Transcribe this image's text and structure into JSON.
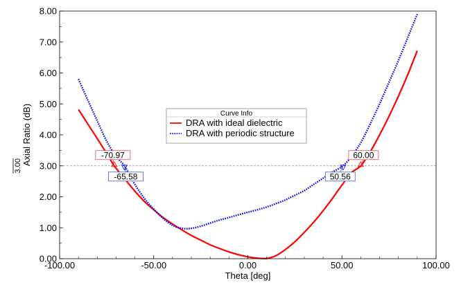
{
  "chart_data": {
    "type": "line",
    "xlabel": "Theta [deg]",
    "ylabel": "Axial Ratio (dB)",
    "xlim": [
      -100,
      100
    ],
    "ylim": [
      0,
      8
    ],
    "xticks": [
      "-100.00",
      "-50.00",
      "0.00",
      "50.00",
      "100.00"
    ],
    "xtick_values": [
      -100,
      -50,
      0,
      50,
      100
    ],
    "yticks": [
      "0.00",
      "1.00",
      "2.00",
      "3.00",
      "4.00",
      "5.00",
      "6.00",
      "7.00",
      "8.00"
    ],
    "ytick_values": [
      0,
      1,
      2,
      3,
      4,
      5,
      6,
      7,
      8
    ],
    "grid": false,
    "legend": {
      "title": "Curve Info",
      "placement": "center"
    },
    "reference_line": {
      "y": 3.0,
      "label": "3.00"
    },
    "series": [
      {
        "name": "DRA with ideal dielectric",
        "color": "#ff0000",
        "style": "solid",
        "x": [
          -90,
          -85,
          -80,
          -75,
          -70.97,
          -65,
          -60,
          -55,
          -50,
          -45,
          -40,
          -35,
          -30,
          -25,
          -20,
          -15,
          -10,
          -5,
          0,
          5,
          10,
          15,
          20,
          25,
          30,
          35,
          40,
          45,
          50,
          55,
          60,
          65,
          70,
          75,
          80,
          85,
          90
        ],
        "y": [
          4.82,
          4.35,
          3.88,
          3.4,
          3.0,
          2.55,
          2.18,
          1.85,
          1.58,
          1.33,
          1.12,
          0.93,
          0.75,
          0.6,
          0.45,
          0.33,
          0.22,
          0.13,
          0.06,
          0.02,
          0.01,
          0.1,
          0.3,
          0.55,
          0.85,
          1.18,
          1.55,
          1.95,
          2.38,
          2.78,
          3.0,
          3.45,
          4.0,
          4.6,
          5.25,
          5.95,
          6.72
        ]
      },
      {
        "name": "DRA with periodic structure",
        "color": "#0000ff",
        "style": "dotted",
        "x": [
          -90,
          -85,
          -80,
          -75,
          -70,
          -65.58,
          -60,
          -55,
          -50,
          -45,
          -40,
          -35,
          -30,
          -25,
          -20,
          -15,
          -10,
          -5,
          0,
          5,
          10,
          15,
          20,
          25,
          30,
          35,
          40,
          45,
          50.56,
          55,
          60,
          65,
          70,
          75,
          80,
          85,
          90
        ],
        "y": [
          5.8,
          5.12,
          4.45,
          3.8,
          3.3,
          3.0,
          2.4,
          1.95,
          1.6,
          1.3,
          1.08,
          0.98,
          0.98,
          1.05,
          1.15,
          1.25,
          1.33,
          1.42,
          1.5,
          1.58,
          1.67,
          1.78,
          1.9,
          2.05,
          2.2,
          2.4,
          2.6,
          2.8,
          3.0,
          3.3,
          3.75,
          4.35,
          5.0,
          5.7,
          6.4,
          7.15,
          7.9
        ]
      }
    ],
    "markers": [
      {
        "label": "-70.97",
        "x": -70.97,
        "y": 3.0,
        "series": 0,
        "side": "above"
      },
      {
        "label": "-65.58",
        "x": -65.58,
        "y": 3.0,
        "series": 1,
        "side": "below"
      },
      {
        "label": "60.00",
        "x": 60.0,
        "y": 3.0,
        "series": 0,
        "side": "above"
      },
      {
        "label": "50.56",
        "x": 50.56,
        "y": 3.0,
        "series": 1,
        "side": "below"
      }
    ]
  }
}
